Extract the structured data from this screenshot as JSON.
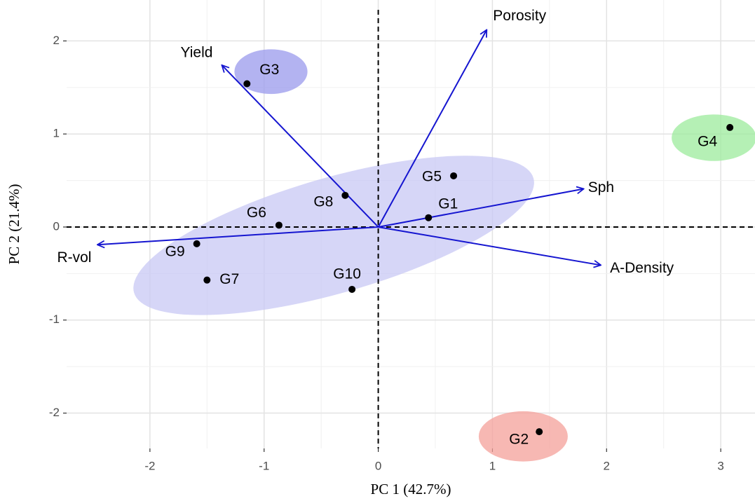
{
  "chart_data": {
    "type": "biplot",
    "xlabel": "PC 1 (42.7%)",
    "ylabel": "PC 2 (21.4%)",
    "xlim": [
      -2.73,
      3.3
    ],
    "ylim": [
      -2.38,
      2.44
    ],
    "xticks": [
      -2,
      -1,
      0,
      1,
      2,
      3
    ],
    "yticks": [
      -2,
      -1,
      0,
      1,
      2
    ],
    "grid": true,
    "point_color": "#000000",
    "arrow_color": "#1515d0",
    "points": {
      "labels": [
        "G1",
        "G2",
        "G3",
        "G4",
        "G5",
        "G6",
        "G7",
        "G8",
        "G9",
        "G10"
      ],
      "x": [
        0.44,
        1.41,
        -1.15,
        3.08,
        0.66,
        -0.87,
        -1.5,
        -0.29,
        -1.59,
        -0.23
      ],
      "y": [
        0.1,
        -2.2,
        1.54,
        1.07,
        0.55,
        0.02,
        -0.57,
        0.34,
        -0.18,
        -0.67
      ]
    },
    "arrows": {
      "labels": [
        "Porosity",
        "Yield",
        "Sph",
        "A-Density",
        "R-vol"
      ],
      "x": [
        0.95,
        -1.37,
        1.8,
        1.95,
        -2.46
      ],
      "y": [
        2.12,
        1.74,
        0.41,
        -0.41,
        -0.19
      ]
    },
    "ellipses": [
      {
        "center": [
          -0.39,
          -0.09
        ],
        "rx": 1.82,
        "ry": 0.62,
        "angle": 16,
        "color": "#c8c8f4"
      },
      {
        "center": [
          -0.94,
          1.67
        ],
        "rx": 0.32,
        "ry": 0.24,
        "angle": 0,
        "color": "#9a9aec"
      },
      {
        "center": [
          2.94,
          0.96
        ],
        "rx": 0.37,
        "ry": 0.25,
        "angle": 0,
        "color": "#9ceb9c"
      },
      {
        "center": [
          1.27,
          -2.25
        ],
        "rx": 0.39,
        "ry": 0.27,
        "angle": 0,
        "color": "#f4a09a"
      }
    ]
  }
}
